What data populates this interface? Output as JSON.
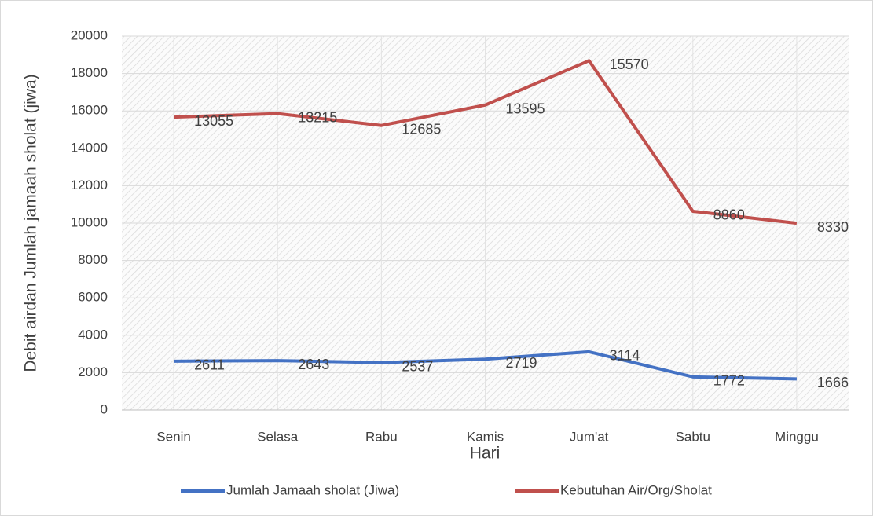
{
  "chart_data": {
    "type": "line",
    "stacked": true,
    "y_label": "Debit airdan Jumlah jamaah sholat (jiwa)",
    "x_label": "Hari",
    "categories": [
      "Senin",
      "Selasa",
      "Rabu",
      "Kamis",
      "Jum'at",
      "Sabtu",
      "Minggu"
    ],
    "series": [
      {
        "name": "Jumlah Jamaah sholat (Jiwa)",
        "color": "#4472c4",
        "values": [
          2611,
          2643,
          2537,
          2719,
          3114,
          1772,
          1666
        ]
      },
      {
        "name": "Kebutuhan Air/Org/Sholat",
        "color": "#c0504d",
        "values": [
          13055,
          13215,
          12685,
          13595,
          15570,
          8860,
          8330
        ]
      }
    ],
    "ylim": [
      0,
      20000
    ],
    "yticks": [
      0,
      2000,
      4000,
      6000,
      8000,
      10000,
      12000,
      14000,
      16000,
      18000,
      20000
    ],
    "grid": true,
    "legend": "bottom"
  }
}
